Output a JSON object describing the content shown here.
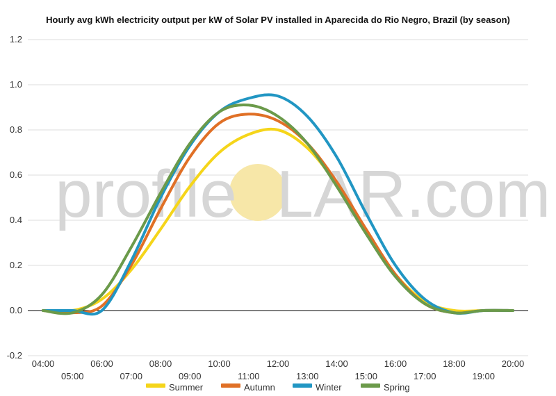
{
  "chart_data": {
    "type": "line",
    "title": "Hourly avg kWh electricity output per kW of Solar PV installed in Aparecida do Rio Negro, Brazil (by season)",
    "xlabel": "",
    "ylabel": "",
    "x": [
      "04:00",
      "05:00",
      "06:00",
      "07:00",
      "08:00",
      "09:00",
      "10:00",
      "11:00",
      "12:00",
      "13:00",
      "14:00",
      "15:00",
      "16:00",
      "17:00",
      "18:00",
      "19:00",
      "20:00"
    ],
    "ylim": [
      -0.2,
      1.2
    ],
    "yticks": [
      "-0.2",
      "0.0",
      "0.2",
      "0.4",
      "0.6",
      "0.8",
      "1.0",
      "1.2"
    ],
    "grid": true,
    "legend_position": "bottom",
    "series": [
      {
        "name": "Summer",
        "color": "#f5d51a",
        "values": [
          0.0,
          0.0,
          0.05,
          0.18,
          0.36,
          0.55,
          0.7,
          0.78,
          0.8,
          0.72,
          0.56,
          0.35,
          0.16,
          0.04,
          0.0,
          0.0,
          0.0
        ]
      },
      {
        "name": "Autumn",
        "color": "#e07026",
        "values": [
          0.0,
          -0.01,
          0.02,
          0.2,
          0.45,
          0.68,
          0.83,
          0.87,
          0.84,
          0.74,
          0.57,
          0.36,
          0.16,
          0.03,
          -0.01,
          0.0,
          0.0
        ]
      },
      {
        "name": "Winter",
        "color": "#2196c3",
        "values": [
          0.0,
          0.0,
          0.0,
          0.22,
          0.5,
          0.73,
          0.88,
          0.94,
          0.95,
          0.86,
          0.68,
          0.43,
          0.2,
          0.05,
          -0.01,
          0.0,
          0.0
        ]
      },
      {
        "name": "Spring",
        "color": "#6b9a4a",
        "values": [
          0.0,
          -0.01,
          0.07,
          0.28,
          0.52,
          0.74,
          0.88,
          0.91,
          0.86,
          0.74,
          0.55,
          0.34,
          0.15,
          0.03,
          -0.01,
          0.0,
          0.0
        ]
      }
    ]
  },
  "watermark": {
    "left": "profile",
    "right": "LAR.com",
    "sun_color": "#f7e7a8"
  }
}
